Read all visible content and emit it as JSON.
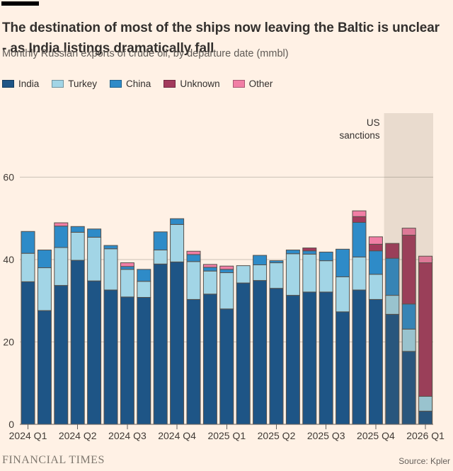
{
  "header": {
    "title": "The destination of most of the ships now leaving the Baltic is unclear - as India listings dramatically fall",
    "subtitle": "Monthly Russian exports of crude oil, by departure date (mmbl)"
  },
  "legend": {
    "items": [
      {
        "label": "India",
        "color": "#1e5586"
      },
      {
        "label": "Turkey",
        "color": "#a2d5e6"
      },
      {
        "label": "China",
        "color": "#2e8bc8"
      },
      {
        "label": "Unknown",
        "color": "#a33a5c"
      },
      {
        "label": "Other",
        "color": "#f17ea5"
      }
    ]
  },
  "chart_data": {
    "type": "bar",
    "stacked": true,
    "title": "The destination of most of the ships now leaving the Baltic is unclear - as India listings dramatically fall",
    "subtitle": "Monthly Russian exports of crude oil, by departure date (mmbl)",
    "xlabel": "",
    "ylabel": "mmbl",
    "ylim": [
      0,
      65
    ],
    "yticks": [
      0,
      20,
      40,
      60
    ],
    "grid": true,
    "legend_position": "top",
    "categories": [
      "2024-01",
      "2024-02",
      "2024-03",
      "2024-04",
      "2024-05",
      "2024-06",
      "2024-07",
      "2024-08",
      "2024-09",
      "2024-10",
      "2024-11",
      "2024-12",
      "2025-01",
      "2025-02",
      "2025-03",
      "2025-04",
      "2025-05",
      "2025-06",
      "2025-07",
      "2025-08",
      "2025-09",
      "2025-10",
      "2025-11",
      "2025-12",
      "2026-01"
    ],
    "x_ticks": [
      {
        "index": 0,
        "label": "2024 Q1"
      },
      {
        "index": 3,
        "label": "2024 Q2"
      },
      {
        "index": 6,
        "label": "2024 Q3"
      },
      {
        "index": 9,
        "label": "2024 Q4"
      },
      {
        "index": 12,
        "label": "2025 Q1"
      },
      {
        "index": 15,
        "label": "2025 Q2"
      },
      {
        "index": 18,
        "label": "2025 Q3"
      },
      {
        "index": 21,
        "label": "2025 Q4"
      },
      {
        "index": 24,
        "label": "2026 Q1"
      }
    ],
    "series": [
      {
        "name": "India",
        "values": [
          34.6,
          27.6,
          33.7,
          39.8,
          34.8,
          32.6,
          30.9,
          30.8,
          38.9,
          39.4,
          30.3,
          31.6,
          28.0,
          34.3,
          34.9,
          33.0,
          31.3,
          32.1,
          32.1,
          27.3,
          32.6,
          30.3,
          26.7,
          17.7,
          3.2
        ]
      },
      {
        "name": "Turkey",
        "values": [
          6.9,
          10.4,
          9.2,
          6.8,
          10.6,
          10.0,
          6.7,
          3.9,
          3.4,
          9.1,
          9.2,
          5.6,
          8.8,
          4.2,
          3.8,
          6.2,
          10.1,
          9.2,
          7.6,
          8.5,
          8.0,
          6.1,
          4.6,
          5.4,
          3.6
        ]
      },
      {
        "name": "China",
        "values": [
          5.3,
          4.3,
          5.2,
          1.4,
          2.0,
          0.8,
          0.7,
          2.9,
          4.4,
          1.4,
          1.7,
          0.9,
          0.8,
          0.0,
          2.3,
          0.5,
          0.9,
          0.8,
          2.1,
          6.7,
          8.4,
          5.7,
          9.0,
          6.1,
          0.0
        ]
      },
      {
        "name": "Unknown",
        "values": [
          0.0,
          0.0,
          0.0,
          0.0,
          0.0,
          0.0,
          0.0,
          0.0,
          0.0,
          0.0,
          0.0,
          0.0,
          0.0,
          0.0,
          0.0,
          0.0,
          0.0,
          0.7,
          0.0,
          0.0,
          1.4,
          1.6,
          3.6,
          16.7,
          32.4
        ]
      },
      {
        "name": "Other",
        "values": [
          0.0,
          0.0,
          0.8,
          0.0,
          0.0,
          0.0,
          0.9,
          0.0,
          0.0,
          0.0,
          0.8,
          0.7,
          0.8,
          0.0,
          0.0,
          0.0,
          0.0,
          0.0,
          0.0,
          0.0,
          1.4,
          1.8,
          0.0,
          1.7,
          1.6
        ]
      }
    ],
    "annotation": {
      "line1": "US",
      "line2": "sanctions"
    },
    "shaded_region": {
      "label": "US sanctions",
      "from_category": "2025-11",
      "to_category": "2026-01"
    }
  },
  "footer": {
    "brand": "FINANCIAL TIMES",
    "source": "Source: Kpler"
  }
}
